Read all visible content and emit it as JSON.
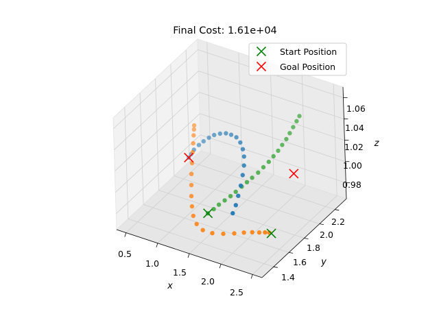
{
  "chart_data": {
    "type": "scatter",
    "projection": "3d",
    "title": "Final Cost: 1.61e+04",
    "xlabel": "x",
    "ylabel": "y",
    "zlabel": "z",
    "xlim": [
      0.35,
      2.65
    ],
    "ylim": [
      1.25,
      2.35
    ],
    "zlim": [
      0.965,
      1.07
    ],
    "xticks": [
      "0.5",
      "1.0",
      "1.5",
      "2.0",
      "2.5"
    ],
    "yticks": [
      "1.4",
      "1.6",
      "1.8",
      "2.0",
      "2.2"
    ],
    "zticks": [
      "0.98",
      "1.00",
      "1.02",
      "1.04",
      "1.06"
    ],
    "grid": true,
    "legend_position": "top-right",
    "legend": [
      {
        "label": "Start Position",
        "marker": "x",
        "color": "#008000"
      },
      {
        "label": "Goal Position",
        "marker": "x",
        "color": "#ff0000"
      }
    ],
    "series": [
      {
        "color": "#1f77b4",
        "points": [
          [
            2.05,
            1.38,
            1.005
          ],
          [
            2.04,
            1.43,
            1.009
          ],
          [
            2.02,
            1.48,
            1.014
          ],
          [
            1.99,
            1.54,
            1.019
          ],
          [
            1.95,
            1.6,
            1.024
          ],
          [
            1.9,
            1.66,
            1.028
          ],
          [
            1.83,
            1.72,
            1.031
          ],
          [
            1.75,
            1.77,
            1.033
          ],
          [
            1.65,
            1.82,
            1.034
          ],
          [
            1.54,
            1.86,
            1.034
          ],
          [
            1.42,
            1.89,
            1.032
          ],
          [
            1.3,
            1.92,
            1.029
          ],
          [
            1.18,
            1.94,
            1.025
          ],
          [
            1.06,
            1.96,
            1.02
          ],
          [
            0.95,
            1.98,
            1.014
          ],
          [
            0.85,
            1.99,
            1.008
          ],
          [
            0.76,
            2.0,
            1.002
          ],
          [
            0.68,
            2.0,
            0.996
          ],
          [
            0.62,
            2.01,
            0.99
          ],
          [
            0.58,
            2.01,
            0.986
          ]
        ]
      },
      {
        "color": "#2ca02c",
        "points": [
          [
            1.35,
            1.62,
            0.975
          ],
          [
            1.42,
            1.64,
            0.979
          ],
          [
            1.48,
            1.66,
            0.983
          ],
          [
            1.55,
            1.68,
            0.987
          ],
          [
            1.62,
            1.7,
            0.991
          ],
          [
            1.68,
            1.72,
            0.995
          ],
          [
            1.74,
            1.75,
            0.999
          ],
          [
            1.8,
            1.77,
            1.003
          ],
          [
            1.86,
            1.79,
            1.007
          ],
          [
            1.92,
            1.82,
            1.011
          ],
          [
            1.97,
            1.85,
            1.015
          ],
          [
            2.02,
            1.88,
            1.019
          ],
          [
            2.06,
            1.91,
            1.023
          ],
          [
            2.1,
            1.94,
            1.027
          ],
          [
            2.13,
            1.97,
            1.031
          ],
          [
            2.16,
            2.0,
            1.035
          ],
          [
            2.18,
            2.03,
            1.039
          ],
          [
            2.2,
            2.06,
            1.043
          ],
          [
            2.22,
            2.09,
            1.047
          ],
          [
            2.23,
            2.12,
            1.05
          ]
        ]
      },
      {
        "color": "#ff7f0e",
        "points": [
          [
            2.45,
            1.52,
            0.985
          ],
          [
            2.38,
            1.52,
            0.984
          ],
          [
            2.3,
            1.51,
            0.983
          ],
          [
            2.2,
            1.5,
            0.982
          ],
          [
            2.08,
            1.49,
            0.98
          ],
          [
            1.95,
            1.47,
            0.978
          ],
          [
            1.8,
            1.45,
            0.976
          ],
          [
            1.65,
            1.43,
            0.975
          ],
          [
            1.5,
            1.43,
            0.975
          ],
          [
            1.38,
            1.45,
            0.977
          ],
          [
            1.28,
            1.49,
            0.98
          ],
          [
            1.2,
            1.54,
            0.984
          ],
          [
            1.12,
            1.6,
            0.988
          ],
          [
            1.05,
            1.66,
            0.993
          ],
          [
            0.98,
            1.72,
            0.998
          ],
          [
            0.92,
            1.78,
            1.003
          ],
          [
            0.86,
            1.84,
            1.008
          ],
          [
            0.81,
            1.89,
            1.012
          ],
          [
            0.77,
            1.93,
            1.016
          ],
          [
            0.74,
            1.96,
            1.019
          ],
          [
            0.72,
            1.98,
            1.021
          ]
        ]
      }
    ],
    "start_positions": [
      [
        1.35,
        1.62,
        0.975
      ],
      [
        2.48,
        1.52,
        0.985
      ]
    ],
    "goal_positions": [
      [
        2.2,
        2.05,
        1.0
      ],
      [
        0.58,
        2.01,
        0.986
      ]
    ]
  }
}
